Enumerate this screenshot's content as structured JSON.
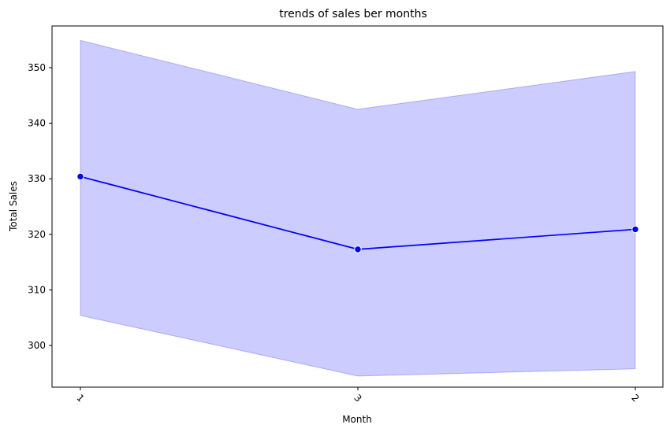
{
  "chart_data": {
    "type": "line",
    "title": "trends of sales ber months",
    "xlabel": "Month",
    "ylabel": "Total Sales",
    "categories": [
      "1",
      "3",
      "2"
    ],
    "series": [
      {
        "values": [
          330.4,
          317.3,
          320.9
        ],
        "ci_lower": [
          305.4,
          294.5,
          295.8
        ],
        "ci_upper": [
          354.9,
          342.5,
          349.3
        ],
        "color": "#0000ff",
        "band_color": "#0000ff"
      }
    ],
    "yticks": [
      300,
      310,
      320,
      330,
      340,
      350
    ],
    "ylim": [
      292.5,
      357.5
    ],
    "xtick_rotation": 45,
    "grid": false,
    "legend": "none"
  }
}
